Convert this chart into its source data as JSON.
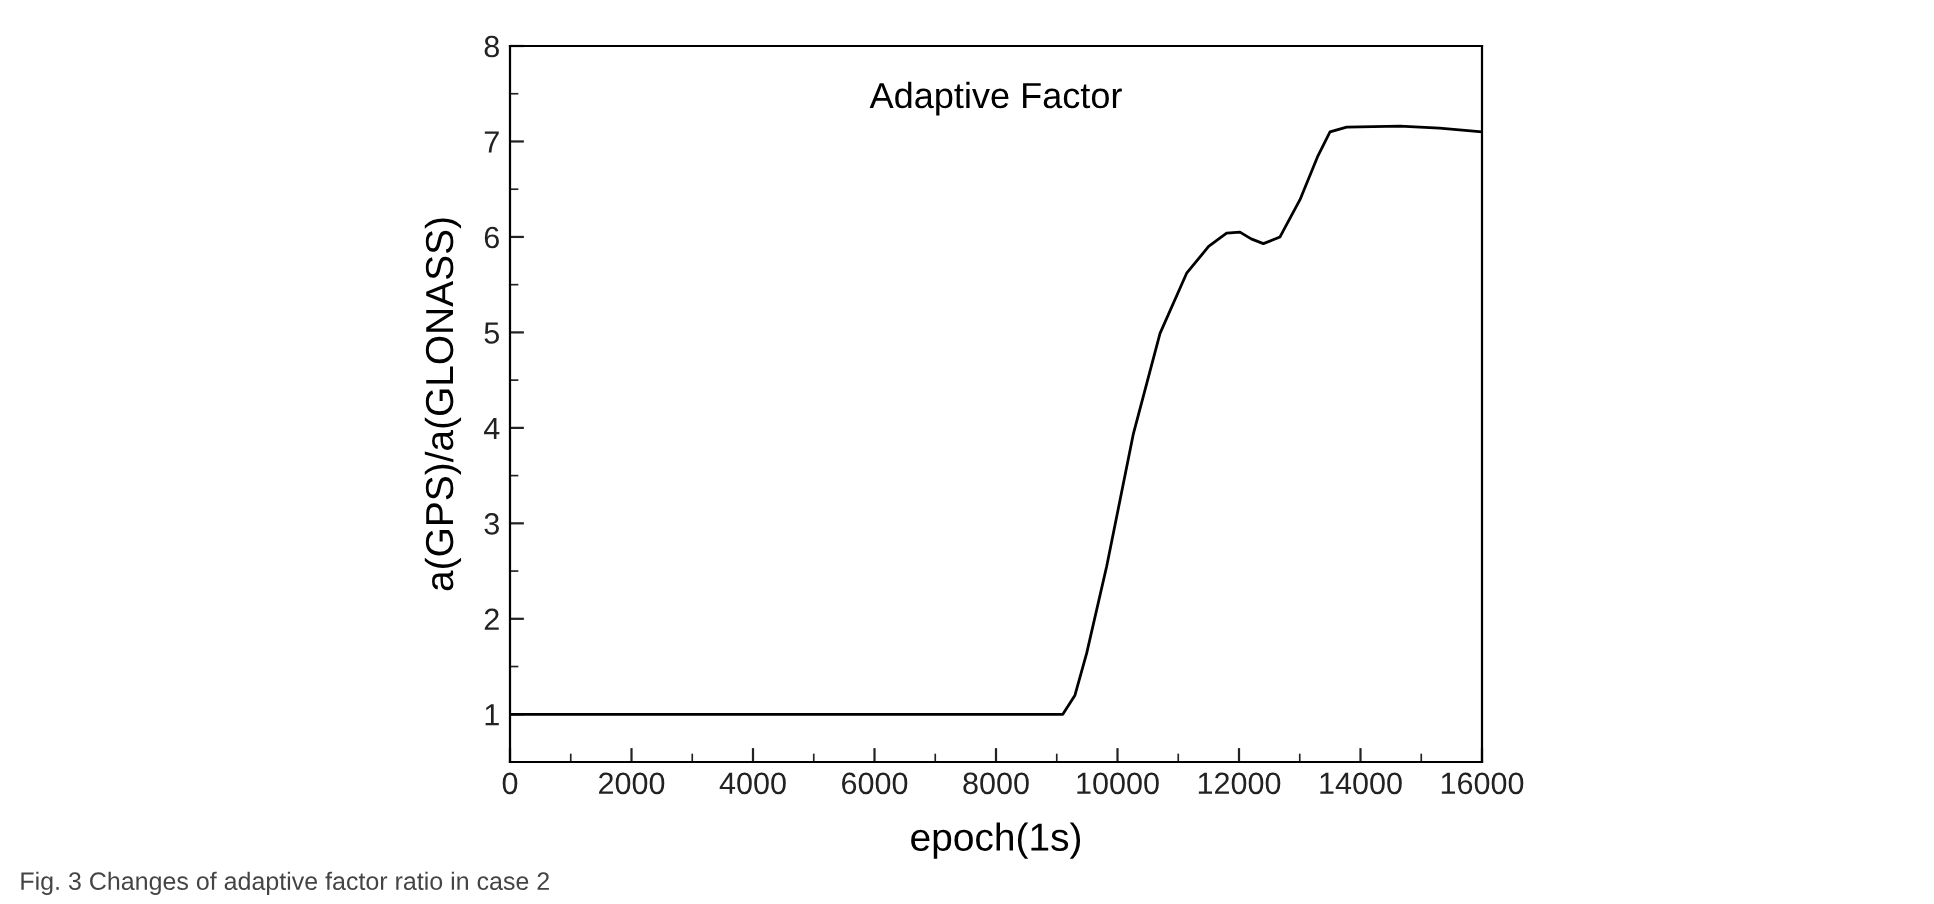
{
  "chart_data": {
    "type": "line",
    "title": "Adaptive Factor",
    "xlabel": "epoch(1s)",
    "ylabel": "a(GPS)/a(GLONASS)",
    "annotations": [
      "Fig. 3 Changes of adaptive factor ratio in case 2"
    ],
    "series": [
      {
        "color": "#000000",
        "x": [
          0,
          9100,
          9300,
          9493,
          9822,
          10262,
          10700,
          11138,
          11500,
          11796,
          12016,
          12200,
          12401,
          12675,
          13004,
          13300,
          13498,
          13772,
          14650,
          15300,
          16000
        ],
        "values": [
          1,
          1,
          1.2,
          1.64,
          2.55,
          3.94,
          4.99,
          5.62,
          5.9,
          6.04,
          6.05,
          5.98,
          5.93,
          6.0,
          6.39,
          6.85,
          7.1,
          7.15,
          7.16,
          7.14,
          7.1
        ]
      }
    ],
    "xlim": [
      0,
      16000
    ],
    "ylim": [
      0.5,
      8
    ],
    "xticks": [
      0,
      2000,
      4000,
      6000,
      8000,
      10000,
      12000,
      14000,
      16000
    ],
    "yticks": [
      1,
      2,
      3,
      4,
      5,
      6,
      7,
      8
    ],
    "grid": false,
    "legend": false,
    "marker": "none",
    "line_style": "solid"
  }
}
